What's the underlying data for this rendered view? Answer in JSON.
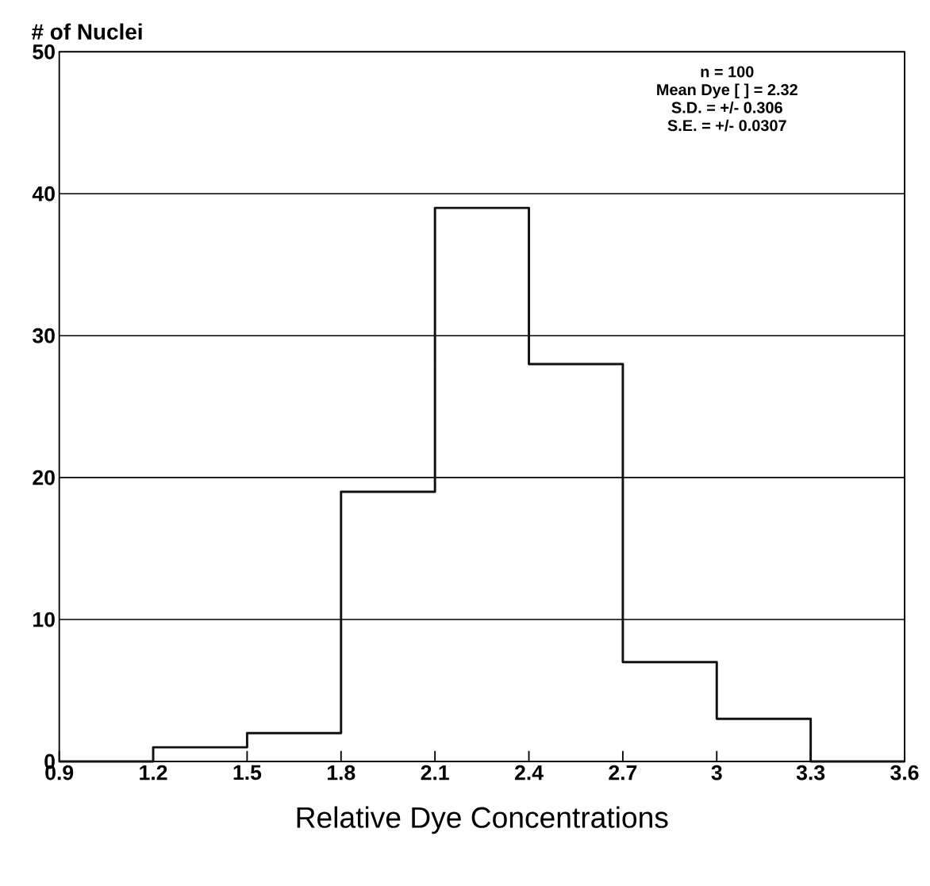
{
  "chart_data": {
    "type": "histogram",
    "xlabel": "Relative Dye Concentrations",
    "ylabel": "# of Nuclei",
    "bins": [
      0.9,
      1.2,
      1.5,
      1.8,
      2.1,
      2.4,
      2.7,
      3.0,
      3.3,
      3.6
    ],
    "values": [
      0,
      1,
      2,
      19,
      39,
      28,
      7,
      3,
      0
    ],
    "color": "#111111",
    "xlim": [
      0.9,
      3.6
    ],
    "ylim": [
      0,
      50
    ],
    "xticks": [
      {
        "value": 0.9,
        "label": "0.9"
      },
      {
        "value": 1.2,
        "label": "1.2"
      },
      {
        "value": 1.5,
        "label": "1.5"
      },
      {
        "value": 1.8,
        "label": "1.8"
      },
      {
        "value": 2.1,
        "label": "2.1"
      },
      {
        "value": 2.4,
        "label": "2.4"
      },
      {
        "value": 2.7,
        "label": "2.7"
      },
      {
        "value": 3,
        "label": "3"
      },
      {
        "value": 3.3,
        "label": "3.3"
      },
      {
        "value": 3.6,
        "label": "3.6"
      }
    ],
    "yticks": [
      0,
      10,
      20,
      30,
      40,
      50
    ],
    "grid": "y",
    "annotations": [
      "n = 100",
      "Mean Dye [ ] = 2.32",
      "S.D. = +/- 0.306",
      "S.E. = +/- 0.0307"
    ]
  }
}
